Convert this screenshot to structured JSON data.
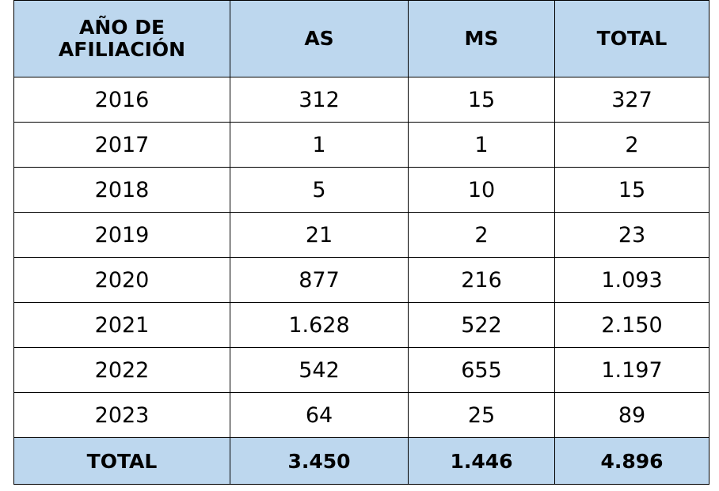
{
  "table": {
    "header": [
      "AÑO DE AFILIACIÓN",
      "AS",
      "MS",
      "TOTAL"
    ],
    "rows": [
      [
        "2016",
        "312",
        "15",
        "327"
      ],
      [
        "2017",
        "1",
        "1",
        "2"
      ],
      [
        "2018",
        "5",
        "10",
        "15"
      ],
      [
        "2019",
        "21",
        "2",
        "23"
      ],
      [
        "2020",
        "877",
        "216",
        "1.093"
      ],
      [
        "2021",
        "1.628",
        "522",
        "2.150"
      ],
      [
        "2022",
        "542",
        "655",
        "1.197"
      ],
      [
        "2023",
        "64",
        "25",
        "89"
      ]
    ],
    "total": [
      "TOTAL",
      "3.450",
      "1.446",
      "4.896"
    ]
  }
}
